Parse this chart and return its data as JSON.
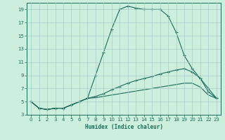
{
  "xlabel": "Humidex (Indice chaleur)",
  "bg_color": "#cceedd",
  "grid_color": "#aacccc",
  "line_color": "#1a6b5a",
  "xlim": [
    -0.5,
    23.5
  ],
  "ylim": [
    3,
    20
  ],
  "xticks": [
    0,
    1,
    2,
    3,
    4,
    5,
    6,
    7,
    8,
    9,
    10,
    11,
    12,
    13,
    14,
    15,
    16,
    17,
    18,
    19,
    20,
    21,
    22,
    23
  ],
  "yticks": [
    3,
    5,
    7,
    9,
    11,
    13,
    15,
    17,
    19
  ],
  "series1_x": [
    0,
    1,
    2,
    3,
    4,
    5,
    6,
    7,
    8,
    9,
    10,
    11,
    12,
    13,
    14,
    15,
    16,
    17,
    18,
    19,
    20,
    21,
    22,
    23
  ],
  "series1_y": [
    5,
    4,
    3.8,
    4,
    4,
    4.5,
    5,
    5.5,
    9,
    12.5,
    16,
    19,
    19.5,
    19.2,
    19,
    19,
    19,
    18,
    15.5,
    12,
    10,
    8.5,
    6.5,
    5.5
  ],
  "series2_x": [
    0,
    1,
    2,
    3,
    4,
    5,
    6,
    7,
    8,
    9,
    10,
    11,
    12,
    13,
    14,
    15,
    16,
    17,
    18,
    19,
    20,
    21,
    22,
    23
  ],
  "series2_y": [
    5,
    4,
    3.8,
    4,
    4,
    4.5,
    5,
    5.5,
    5.8,
    6.2,
    6.8,
    7.3,
    7.8,
    8.2,
    8.5,
    8.8,
    9.2,
    9.5,
    9.8,
    10,
    9.5,
    8.5,
    7,
    5.5
  ],
  "series3_x": [
    0,
    1,
    2,
    3,
    4,
    5,
    6,
    7,
    8,
    9,
    10,
    11,
    12,
    13,
    14,
    15,
    16,
    17,
    18,
    19,
    20,
    21,
    22,
    23
  ],
  "series3_y": [
    5,
    4,
    3.8,
    4,
    4,
    4.5,
    5,
    5.5,
    5.6,
    5.8,
    6.0,
    6.2,
    6.4,
    6.6,
    6.8,
    7.0,
    7.2,
    7.4,
    7.6,
    7.8,
    7.8,
    7.2,
    6.0,
    5.5
  ]
}
